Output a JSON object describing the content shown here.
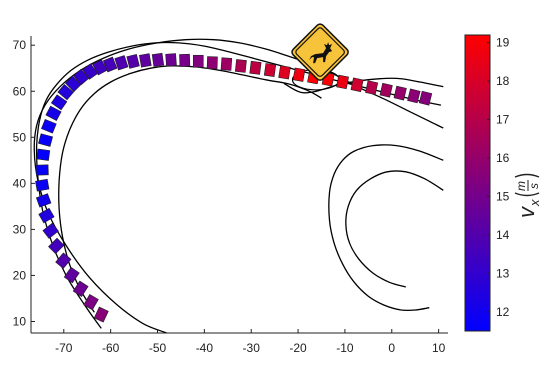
{
  "chart_data": {
    "type": "scatter",
    "title": "",
    "xlabel": "",
    "ylabel": "",
    "xlim": [
      -77,
      12
    ],
    "ylim": [
      7.5,
      72
    ],
    "xticks": [
      -70,
      -60,
      -50,
      -40,
      -30,
      -20,
      -10,
      0,
      10
    ],
    "yticks": [
      10,
      20,
      30,
      40,
      50,
      60,
      70
    ],
    "grid": false,
    "colorbar": {
      "label": "v_x (m/s)",
      "range": [
        11.5,
        19.2
      ],
      "ticks": [
        12,
        13,
        14,
        15,
        16,
        17,
        18,
        19
      ],
      "colors": [
        "#0000ff",
        "#ff0000"
      ]
    },
    "vehicle_footprints": {
      "x": [
        -62,
        -64.2,
        -66.4,
        -68.3,
        -70.1,
        -71.6,
        -72.8,
        -73.7,
        -74.3,
        -74.6,
        -74.6,
        -74.4,
        -73.9,
        -73.2,
        -72.2,
        -71.0,
        -69.6,
        -68.0,
        -66.3,
        -64.4,
        -62.3,
        -60.1,
        -57.7,
        -55.2,
        -52.6,
        -49.9,
        -47.1,
        -44.2,
        -41.3,
        -38.3,
        -35.3,
        -32.2,
        -29.1,
        -26.0,
        -22.9,
        -19.8,
        -16.7,
        -13.6,
        -10.5,
        -7.4,
        -4.3,
        -1.2,
        1.8,
        4.7,
        7.2
      ],
      "y": [
        11.5,
        14.2,
        17.1,
        20.1,
        23.2,
        26.4,
        29.7,
        33.0,
        36.3,
        39.6,
        42.9,
        46.2,
        49.4,
        52.4,
        55.2,
        57.6,
        59.8,
        61.6,
        63.1,
        64.3,
        65.2,
        65.8,
        66.2,
        66.5,
        66.7,
        66.8,
        66.8,
        66.7,
        66.5,
        66.2,
        65.9,
        65.5,
        65.1,
        64.6,
        64.1,
        63.6,
        63.1,
        62.6,
        62.0,
        61.4,
        60.8,
        60.2,
        59.6,
        59.0,
        58.5
      ],
      "vx": [
        15.6,
        15.2,
        14.8,
        14.4,
        14.0,
        13.5,
        13.0,
        12.5,
        12.1,
        11.8,
        11.7,
        11.6,
        11.7,
        11.9,
        12.2,
        12.4,
        12.6,
        12.8,
        13.0,
        13.2,
        13.4,
        13.6,
        13.9,
        14.1,
        14.4,
        14.6,
        14.8,
        15.1,
        15.4,
        15.8,
        16.2,
        16.7,
        17.2,
        17.7,
        18.2,
        18.7,
        19.1,
        19.1,
        18.6,
        17.8,
        17.0,
        16.4,
        16.0,
        15.7,
        15.5
      ],
      "heading_deg": [
        -65,
        -60,
        -57,
        -55,
        -50,
        -45,
        -38,
        -30,
        -20,
        -10,
        -2,
        8,
        15,
        22,
        28,
        35,
        40,
        45,
        50,
        55,
        62,
        68,
        72,
        76,
        80,
        82,
        86,
        88,
        90,
        92,
        94,
        96,
        97,
        98,
        99,
        100,
        101,
        101,
        101,
        102,
        102,
        103,
        103,
        104,
        104
      ]
    },
    "road_edges": [
      {
        "x": [
          -62,
          -65.5,
          -69.5,
          -72.5,
          -74.5,
          -75.5,
          -75.8,
          -75.2,
          -73.8,
          -71.5,
          -68.5,
          -64.8,
          -60.5,
          -55.5,
          -50.5,
          -45.5,
          -40,
          -34.5,
          -29,
          -23.5,
          -18,
          -12.5,
          -6.5,
          -0.5,
          5.5,
          10.5
        ],
        "y": [
          8.5,
          13.5,
          20,
          27,
          34,
          41,
          48,
          53.5,
          58,
          61.5,
          64.5,
          66.8,
          68.5,
          69.8,
          70.5,
          70.5,
          69.8,
          68.5,
          67,
          65.5,
          64,
          62.5,
          61,
          59.5,
          58,
          57
        ]
      },
      {
        "x": [
          -63.5,
          -66.5,
          -68.8,
          -70.3,
          -71,
          -71,
          -70.3,
          -68.8,
          -66.5,
          -63.5,
          -60,
          -56,
          -51.5,
          -47,
          -42,
          -37,
          -32,
          -27,
          -22.5,
          -19.5,
          -17.2,
          -15
        ],
        "y": [
          12,
          17,
          22.5,
          28.5,
          34.5,
          40.5,
          46.5,
          51.5,
          56,
          59.5,
          62,
          63.8,
          65,
          65.5,
          65.3,
          64.6,
          63.6,
          62.5,
          61.7,
          60.8,
          59.8,
          58.5
        ]
      },
      {
        "x": [
          -48,
          -53,
          -58.5,
          -64.5,
          -69.5,
          -73.3,
          -75.5,
          -76.3,
          -75.8,
          -74,
          -70.8,
          -66.5,
          -61.5,
          -56,
          -50,
          -44,
          -38,
          -32.5,
          -27,
          -22,
          -17,
          -12,
          -7,
          -2,
          3,
          8,
          11
        ],
        "y": [
          7.5,
          9.5,
          13.5,
          19.5,
          26.5,
          33.5,
          40.5,
          47,
          52.5,
          57,
          61,
          64.5,
          67.2,
          69.2,
          70.5,
          71.2,
          71.2,
          70.5,
          69.2,
          67.6,
          65.8,
          63.5,
          60.8,
          58.5,
          56,
          53.5,
          52
        ]
      },
      {
        "x": [
          -23,
          -19.5,
          -16.2,
          -11,
          -5,
          1,
          6,
          11
        ],
        "y": [
          61.7,
          59.8,
          60,
          61.5,
          62.5,
          62.8,
          62,
          61
        ]
      },
      {
        "x": [
          11,
          6,
          1,
          -4,
          -8,
          -10.5,
          -12.3,
          -13.3,
          -13.3,
          -12.3,
          -10.5,
          -8,
          -5,
          -1.5,
          2,
          5,
          8
        ],
        "y": [
          45,
          47,
          48.2,
          48.2,
          47,
          45,
          42,
          38,
          32,
          27,
          22.5,
          18.5,
          15.5,
          13.5,
          12.5,
          12.5,
          13
        ]
      },
      {
        "x": [
          11,
          7,
          3,
          -1,
          -4.5,
          -7.5,
          -9.3,
          -9.8,
          -9,
          -7,
          -4,
          -0.5,
          3
        ],
        "y": [
          38.5,
          41,
          42.5,
          42.5,
          41,
          38.5,
          35,
          31,
          27,
          23.5,
          20.5,
          18.5,
          17.5
        ]
      }
    ],
    "obstacle_zone": {
      "cx": -16.2,
      "cy": 62.5,
      "rx": 5,
      "ry": 2.2
    },
    "warning_sign": {
      "x": -15.3,
      "y": 68.5,
      "icon": "deer-crossing-icon",
      "fill": "#f7c33a"
    }
  }
}
